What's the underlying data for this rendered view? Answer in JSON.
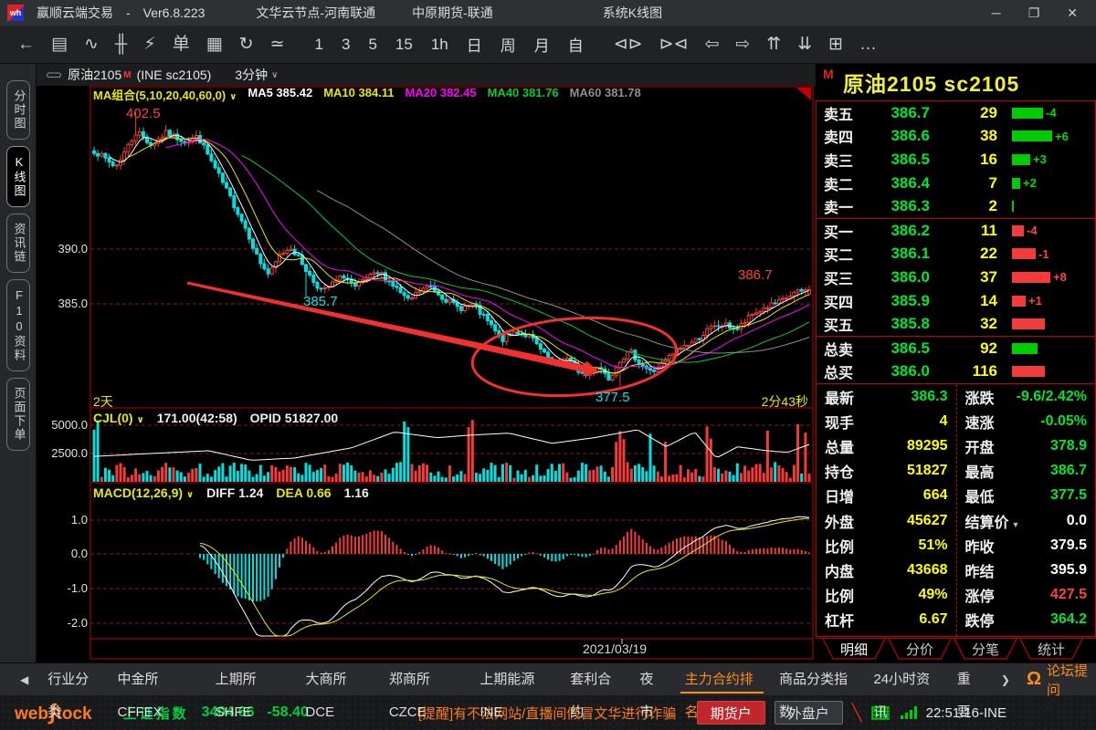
{
  "window": {
    "logo_text": "wh",
    "app_title": "赢顺云端交易",
    "dash": "-",
    "version": "Ver6.8.223",
    "cloud_node": "文华云节点-河南联通",
    "broker": "中原期货-联通",
    "page_name": "系统K线图",
    "minimize": "─",
    "maximize": "❐",
    "close": "✕"
  },
  "toolbar": {
    "left_icons": [
      {
        "name": "back-icon",
        "glyph": "←"
      },
      {
        "name": "report-icon",
        "glyph": "▤"
      },
      {
        "name": "timeline-icon",
        "glyph": "∿"
      },
      {
        "name": "kline-icon",
        "glyph": "╫"
      },
      {
        "name": "flash-order-icon",
        "glyph": "⚡"
      },
      {
        "name": "order-ticket-icon",
        "glyph": "单"
      },
      {
        "name": "save-icon",
        "glyph": "▦"
      },
      {
        "name": "refresh-icon",
        "glyph": "↻"
      },
      {
        "name": "draw-line-icon",
        "glyph": "≃"
      }
    ],
    "periods": [
      "1",
      "3",
      "5",
      "15",
      "1h",
      "日",
      "周",
      "月",
      "自"
    ],
    "right_icons": [
      {
        "name": "zoom-out-icon",
        "glyph": "⊲⊳"
      },
      {
        "name": "zoom-in-icon",
        "glyph": "⊳⊲"
      },
      {
        "name": "page-left-icon",
        "glyph": "⇦"
      },
      {
        "name": "page-right-icon",
        "glyph": "⇨"
      },
      {
        "name": "scroll-up-icon",
        "glyph": "⇈"
      },
      {
        "name": "scroll-down-icon",
        "glyph": "⇊"
      },
      {
        "name": "layout-icon",
        "glyph": "⊞"
      },
      {
        "name": "more-icon",
        "glyph": "…"
      }
    ]
  },
  "sidebar": {
    "items": [
      {
        "label": "分时图",
        "active": false
      },
      {
        "label": "K线图",
        "active": true
      },
      {
        "label": "资讯链",
        "active": false
      },
      {
        "label": "F10资料",
        "active": false
      },
      {
        "label": "页面下单",
        "active": false
      }
    ]
  },
  "contract_bar": {
    "link_icon": "⊂⊃",
    "name": "原油2105",
    "flag": "M",
    "code": "(INE sc2105)",
    "period": "3分钟",
    "caret": "∨"
  },
  "chart": {
    "ma_title": "MA组合(5,10,20,40,60,0)",
    "ma_caret": "∨",
    "ma_items": [
      {
        "label": "MA5 385.42",
        "color": "#ffffff"
      },
      {
        "label": "MA10 384.11",
        "color": "#e8e800"
      },
      {
        "label": "MA20 382.45",
        "color": "#ff00ff"
      },
      {
        "label": "MA40 381.76",
        "color": "#00cc33"
      },
      {
        "label": "MA60 381.78",
        "color": "#8f8f8f"
      }
    ],
    "y_main": [
      "390.0",
      "385.0"
    ],
    "high_label": "402.5",
    "day1_low_label": "385.7",
    "low_label": "377.5",
    "last_high_label": "386.7",
    "span_label": "2天",
    "countdown_label": "2分43秒",
    "date_label": "2021/03/19"
  },
  "cjl": {
    "title": "CJL(0)",
    "caret": "∨",
    "value_text": "171.00(42:58)",
    "opid_text": "OPID 51827.00",
    "y_labels": [
      "5000.0",
      "2500.0"
    ]
  },
  "macd": {
    "title": "MACD(12,26,9)",
    "caret": "∨",
    "diff_text": "DIFF 1.24",
    "dea_text": "DEA 0.66",
    "macd_text": "1.16",
    "y_labels": [
      "1.0",
      "0.0",
      "-1.0",
      "-2.0"
    ]
  },
  "quote": {
    "flag": "M",
    "title": "原油2105  sc2105",
    "asks": [
      {
        "label": "卖五",
        "price": "386.7",
        "qty": "29",
        "bar": 34,
        "delta": "-4"
      },
      {
        "label": "卖四",
        "price": "386.6",
        "qty": "38",
        "bar": 44,
        "delta": "+6"
      },
      {
        "label": "卖三",
        "price": "386.5",
        "qty": "16",
        "bar": 20,
        "delta": "+3"
      },
      {
        "label": "卖二",
        "price": "386.4",
        "qty": "7",
        "bar": 9,
        "delta": "+2"
      },
      {
        "label": "卖一",
        "price": "386.3",
        "qty": "2",
        "bar": 2,
        "delta": ""
      }
    ],
    "bids": [
      {
        "label": "买一",
        "price": "386.2",
        "qty": "11",
        "bar": 13,
        "delta": "-4"
      },
      {
        "label": "买二",
        "price": "386.1",
        "qty": "22",
        "bar": 26,
        "delta": "-1"
      },
      {
        "label": "买三",
        "price": "386.0",
        "qty": "37",
        "bar": 42,
        "delta": "+8"
      },
      {
        "label": "买四",
        "price": "385.9",
        "qty": "14",
        "bar": 15,
        "delta": "+1"
      },
      {
        "label": "买五",
        "price": "385.8",
        "qty": "32",
        "bar": 36,
        "delta": ""
      }
    ],
    "totals": [
      {
        "label": "总卖",
        "price": "386.5",
        "qty": "92",
        "bar": 28,
        "side": "ask"
      },
      {
        "label": "总买",
        "price": "386.0",
        "qty": "116",
        "bar": 36,
        "side": "bid"
      }
    ],
    "stats_left": [
      {
        "label": "最新",
        "value": "386.3",
        "color": "#00e432"
      },
      {
        "label": "现手",
        "value": "4",
        "color": "#ffff00"
      },
      {
        "label": "总量",
        "value": "89295",
        "color": "#ffff00"
      },
      {
        "label": "持仓",
        "value": "51827",
        "color": "#ffff00"
      },
      {
        "label": "日增",
        "value": "664",
        "color": "#ffff00"
      },
      {
        "label": "外盘",
        "value": "45627",
        "color": "#ffff00"
      },
      {
        "label": "比例",
        "value": "51%",
        "color": "#ffff00"
      },
      {
        "label": "内盘",
        "value": "43668",
        "color": "#ffff00"
      },
      {
        "label": "比例",
        "value": "49%",
        "color": "#ffff00"
      },
      {
        "label": "杠杆",
        "value": "6.67",
        "color": "#ffff00"
      }
    ],
    "stats_right": [
      {
        "label": "涨跌",
        "value": "-9.6/2.42%",
        "color": "#00e432"
      },
      {
        "label": "速涨",
        "value": "-0.05%",
        "color": "#00e432"
      },
      {
        "label": "开盘",
        "value": "378.9",
        "color": "#00e432"
      },
      {
        "label": "最高",
        "value": "386.7",
        "color": "#00e432"
      },
      {
        "label": "最低",
        "value": "377.5",
        "color": "#00e432"
      },
      {
        "label": "结算价",
        "value": "0.0",
        "color": "#ffffff",
        "caret": true
      },
      {
        "label": "昨收",
        "value": "379.5",
        "color": "#ffffff"
      },
      {
        "label": "昨结",
        "value": "395.9",
        "color": "#ffffff"
      },
      {
        "label": "涨停",
        "value": "427.5",
        "color": "#ff4040"
      },
      {
        "label": "跌停",
        "value": "364.2",
        "color": "#00e432"
      }
    ],
    "tabs": [
      {
        "label": "明细",
        "active": true
      },
      {
        "label": "分价",
        "active": false
      },
      {
        "label": "分笔",
        "active": false
      },
      {
        "label": "统计",
        "active": false
      }
    ]
  },
  "bottom_tabs": {
    "left_arrow": "◀",
    "right_arrow": "❯",
    "items": [
      "行业分类",
      "中金所CFFEX",
      "上期所SHFE",
      "大商所DCE",
      "郑商所CZCE",
      "上期能源INE",
      "套利合约",
      "夜市",
      "主力合约排名",
      "商品分类指数",
      "24小时资讯",
      "重要"
    ],
    "active": "主力合约排名",
    "headset_icon": "Ω",
    "forum_label": "论坛提问"
  },
  "statusbar": {
    "logo_web": "web",
    "logo_s": "∫",
    "logo_tock": "tock",
    "index_name": "上证指数",
    "index_value": "3404.66",
    "index_change": "-58.40",
    "notice": "[提醒]有不法网站/直播间假冒文华进行诈骗",
    "btn_futures": "期货户",
    "btn_foreign": "外盘户",
    "clock": "22:51:16-INE"
  },
  "series": {
    "n": 190,
    "close_anchors": [
      [
        0,
        399.0
      ],
      [
        0.03,
        397.5
      ],
      [
        0.06,
        400.8
      ],
      [
        0.08,
        399.5
      ],
      [
        0.1,
        400.6
      ],
      [
        0.13,
        399.8
      ],
      [
        0.145,
        400.3
      ],
      [
        0.16,
        398.5
      ],
      [
        0.18,
        396.0
      ],
      [
        0.2,
        393.5
      ],
      [
        0.215,
        391.5
      ],
      [
        0.23,
        389.0
      ],
      [
        0.245,
        387.6
      ],
      [
        0.26,
        389.5
      ],
      [
        0.275,
        390.2
      ],
      [
        0.29,
        388.8
      ],
      [
        0.305,
        387.2
      ],
      [
        0.32,
        386.1
      ],
      [
        0.335,
        386.9
      ],
      [
        0.35,
        387.6
      ],
      [
        0.365,
        386.4
      ],
      [
        0.38,
        387.3
      ],
      [
        0.4,
        387.8
      ],
      [
        0.42,
        386.6
      ],
      [
        0.44,
        385.2
      ],
      [
        0.455,
        386.2
      ],
      [
        0.47,
        386.6
      ],
      [
        0.49,
        385.5
      ],
      [
        0.51,
        384.6
      ],
      [
        0.53,
        384.9
      ],
      [
        0.55,
        383.4
      ],
      [
        0.57,
        381.7
      ],
      [
        0.59,
        382.5
      ],
      [
        0.61,
        382.0
      ],
      [
        0.63,
        380.3
      ],
      [
        0.645,
        379.5
      ],
      [
        0.66,
        380.1
      ],
      [
        0.675,
        379.0
      ],
      [
        0.69,
        378.4
      ],
      [
        0.705,
        379.4
      ],
      [
        0.72,
        378.2
      ],
      [
        0.735,
        379.9
      ],
      [
        0.75,
        380.6
      ],
      [
        0.765,
        379.5
      ],
      [
        0.78,
        378.7
      ],
      [
        0.8,
        379.9
      ],
      [
        0.82,
        381.0
      ],
      [
        0.84,
        381.6
      ],
      [
        0.86,
        382.7
      ],
      [
        0.88,
        383.1
      ],
      [
        0.9,
        382.7
      ],
      [
        0.92,
        384.0
      ],
      [
        0.94,
        384.7
      ],
      [
        0.96,
        385.2
      ],
      [
        0.98,
        386.0
      ],
      [
        1,
        386.3
      ]
    ],
    "opid_anchors": [
      [
        0,
        0.45
      ],
      [
        0.08,
        0.5
      ],
      [
        0.16,
        0.55
      ],
      [
        0.22,
        0.38
      ],
      [
        0.28,
        0.42
      ],
      [
        0.36,
        0.6
      ],
      [
        0.42,
        0.88
      ],
      [
        0.48,
        0.78
      ],
      [
        0.52,
        0.82
      ],
      [
        0.58,
        0.86
      ],
      [
        0.64,
        0.68
      ],
      [
        0.7,
        0.78
      ],
      [
        0.76,
        0.92
      ],
      [
        0.8,
        0.62
      ],
      [
        0.84,
        0.88
      ],
      [
        0.87,
        0.42
      ],
      [
        0.9,
        0.62
      ],
      [
        0.94,
        0.55
      ],
      [
        0.97,
        0.52
      ],
      [
        1,
        0.66
      ]
    ],
    "volume_spikes": [
      0,
      1,
      82,
      83,
      99,
      100,
      138,
      139,
      140,
      147,
      151,
      162,
      163,
      178,
      186,
      188
    ],
    "forced": {
      "high_idx": 11,
      "high": 402.5,
      "day1_low_idx": 56,
      "day1_low": 385.7,
      "low_idx": 139,
      "low": 377.5,
      "last_close": 386.3,
      "last_open": 385.9,
      "last_high": 386.7
    }
  },
  "colors": {
    "up": "#f23c3c",
    "down": "#00e0e0",
    "grid": "#8a1d1d",
    "border": "#c30000",
    "ask_bar": "#00cc00",
    "bid_bar": "#f23c3c",
    "annotation": "#f23030"
  }
}
